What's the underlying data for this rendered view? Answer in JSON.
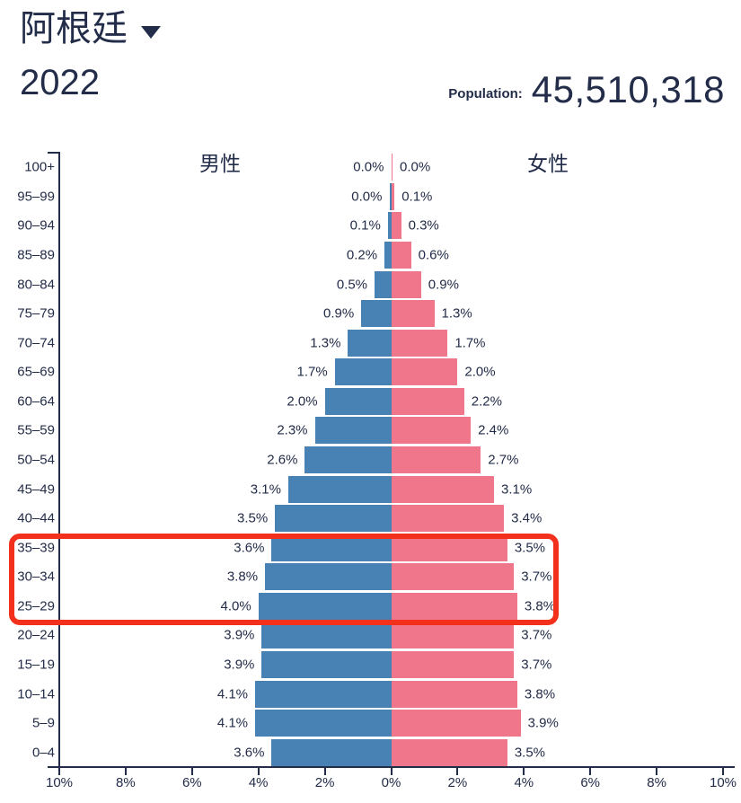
{
  "header": {
    "country": "阿根廷",
    "year": "2022",
    "population_label": "Population:",
    "population_value": "45,510,318"
  },
  "chart_data": {
    "type": "bar",
    "title": "阿根廷 2022 population pyramid",
    "male_label": "男性",
    "female_label": "女性",
    "value_unit": "%",
    "age_groups": [
      "100+",
      "95–99",
      "90–94",
      "85–89",
      "80–84",
      "75–79",
      "70–74",
      "65–69",
      "60–64",
      "55–59",
      "50–54",
      "45–49",
      "40–44",
      "35–39",
      "30–34",
      "25–29",
      "20–24",
      "15–19",
      "10–14",
      "5–9",
      "0–4"
    ],
    "series": [
      {
        "name": "男性",
        "side": "male",
        "values": [
          0.0,
          0.0,
          0.1,
          0.2,
          0.5,
          0.9,
          1.3,
          1.7,
          2.0,
          2.3,
          2.6,
          3.1,
          3.5,
          3.6,
          3.8,
          4.0,
          3.9,
          3.9,
          4.1,
          4.1,
          3.6
        ]
      },
      {
        "name": "女性",
        "side": "female",
        "values": [
          0.0,
          0.1,
          0.3,
          0.6,
          0.9,
          1.3,
          1.7,
          2.0,
          2.2,
          2.4,
          2.7,
          3.1,
          3.4,
          3.5,
          3.7,
          3.8,
          3.7,
          3.7,
          3.8,
          3.9,
          3.5
        ]
      }
    ],
    "x_ticks": [
      "10%",
      "8%",
      "6%",
      "4%",
      "2%",
      "0%",
      "2%",
      "4%",
      "6%",
      "8%",
      "10%"
    ],
    "xlim": [
      -10,
      10
    ],
    "grid": false,
    "highlighted_age_groups": [
      "35–39",
      "30–34",
      "25–29"
    ],
    "colors": {
      "male": "#4881B4",
      "female": "#F0768B",
      "highlight": "#F3301C",
      "text": "#232D49"
    }
  }
}
